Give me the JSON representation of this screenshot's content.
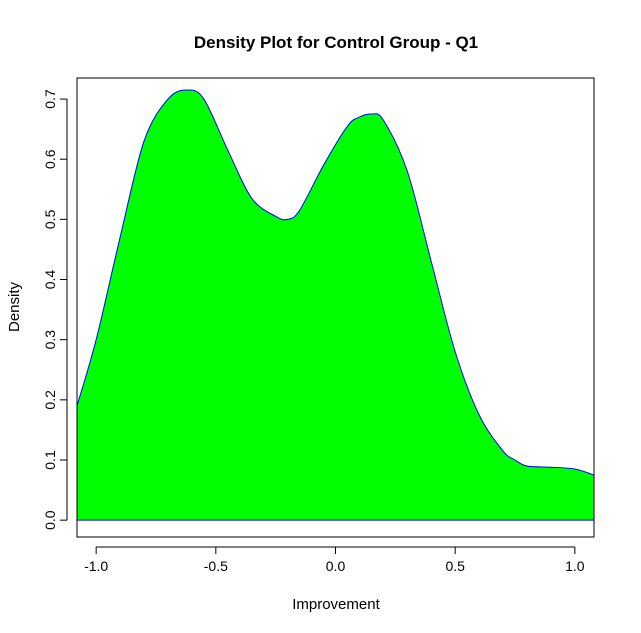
{
  "chart_data": {
    "type": "area",
    "title": "Density Plot for Control Group - Q1",
    "xlabel": "Improvement",
    "ylabel": "Density",
    "xlim": [
      -1.08,
      1.08
    ],
    "ylim": [
      -0.028,
      0.735
    ],
    "x_ticks": [
      -1.0,
      -0.5,
      0.0,
      0.5,
      1.0
    ],
    "x_tick_labels": [
      "-1.0",
      "-0.5",
      "0.0",
      "0.5",
      "1.0"
    ],
    "y_ticks": [
      0.0,
      0.1,
      0.2,
      0.3,
      0.4,
      0.5,
      0.6,
      0.7
    ],
    "y_tick_labels": [
      "0.0",
      "0.1",
      "0.2",
      "0.3",
      "0.4",
      "0.5",
      "0.6",
      "0.7"
    ],
    "grid": false,
    "fill_color": "#00ff00",
    "line_color": "#0000ff",
    "series": [
      {
        "x": [
          -1.08,
          -1.0,
          -0.9,
          -0.8,
          -0.7,
          -0.62,
          -0.55,
          -0.45,
          -0.35,
          -0.25,
          -0.2,
          -0.15,
          -0.05,
          0.05,
          0.1,
          0.15,
          0.2,
          0.3,
          0.4,
          0.5,
          0.6,
          0.7,
          0.75,
          0.8,
          0.9,
          1.0,
          1.08
        ],
        "y": [
          0.19,
          0.3,
          0.47,
          0.63,
          0.7,
          0.715,
          0.7,
          0.615,
          0.535,
          0.505,
          0.5,
          0.515,
          0.59,
          0.655,
          0.67,
          0.675,
          0.665,
          0.58,
          0.43,
          0.28,
          0.175,
          0.115,
          0.1,
          0.09,
          0.088,
          0.085,
          0.075
        ]
      }
    ]
  }
}
